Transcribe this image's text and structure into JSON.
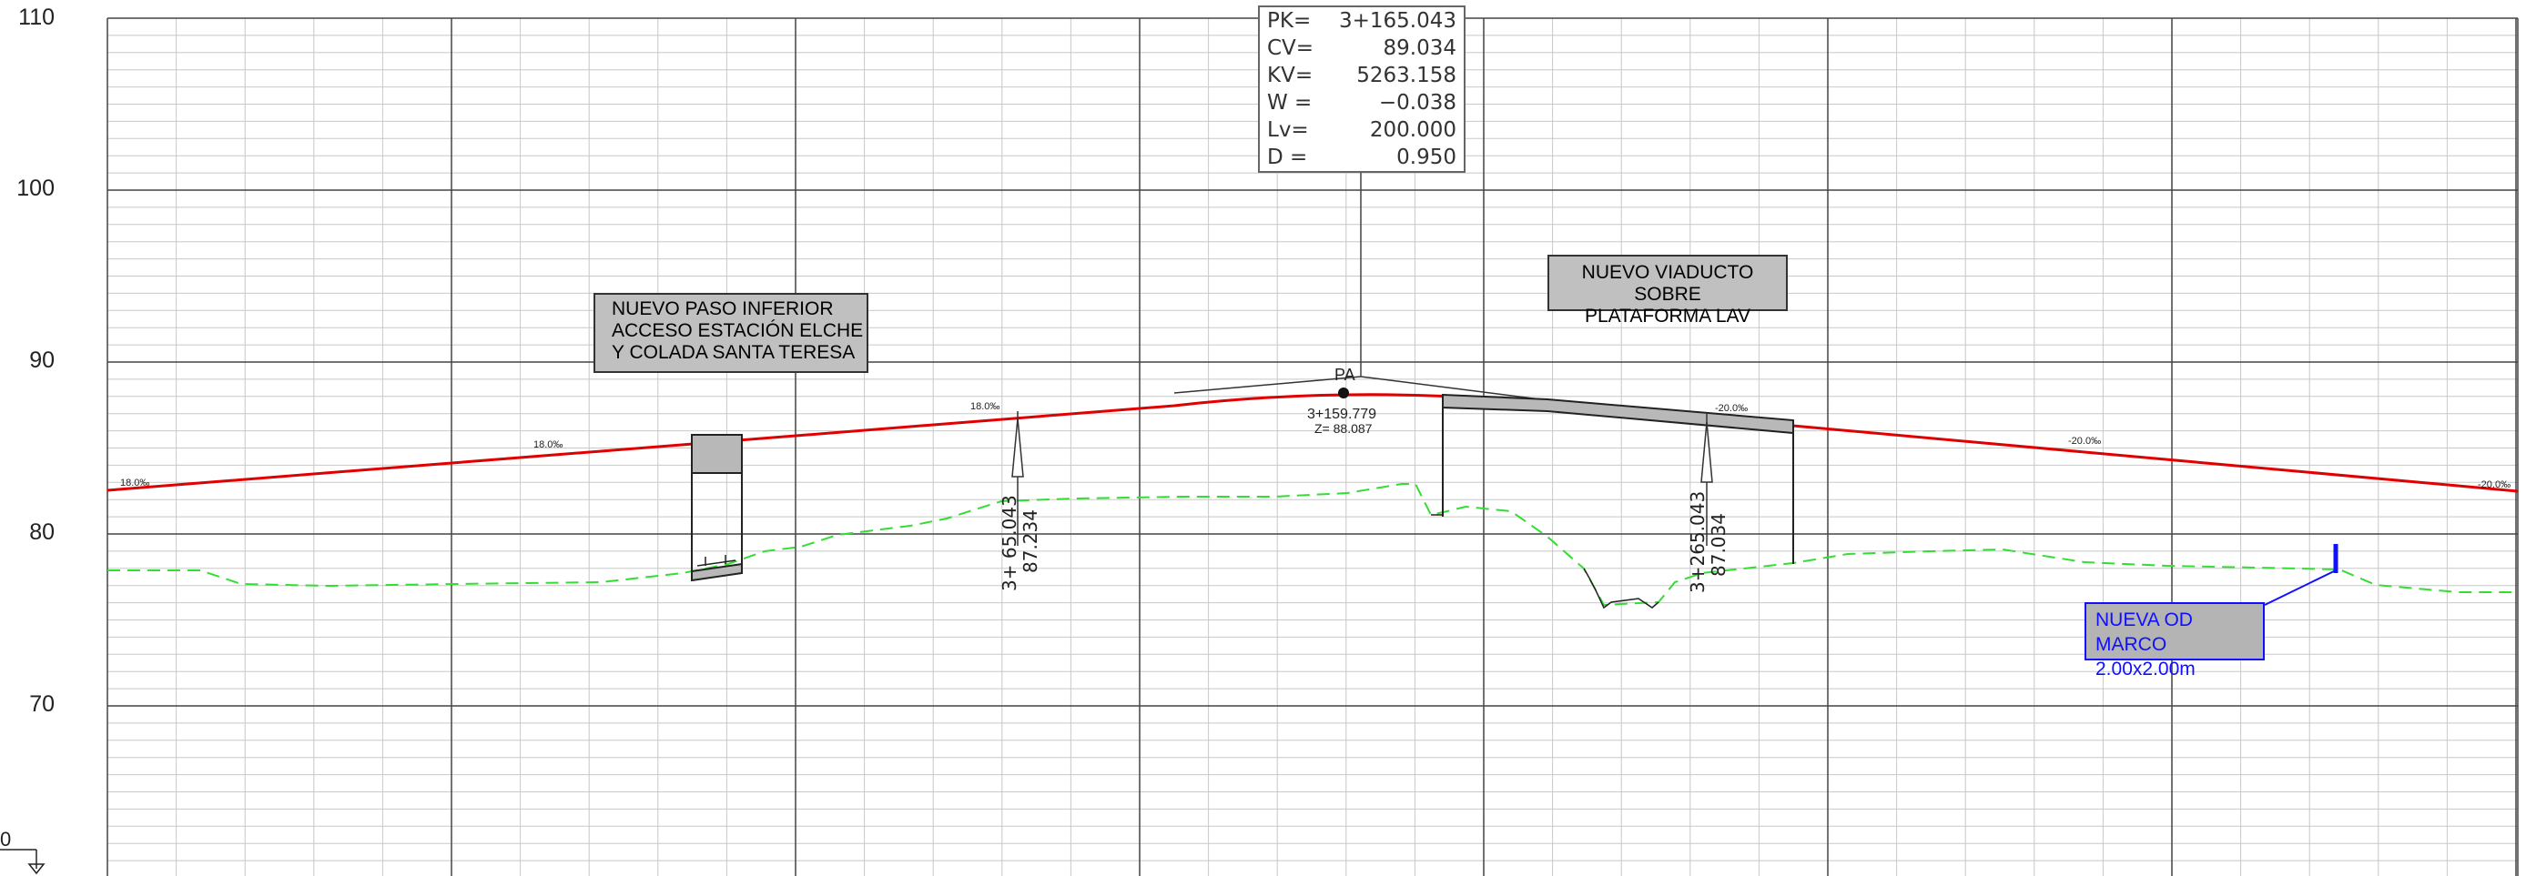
{
  "y_axis": {
    "ticks": [
      "110",
      "100",
      "90",
      "80",
      "70"
    ],
    "datum": "0"
  },
  "info_box": {
    "rows": [
      {
        "key": "PK=",
        "value": "3+165.043"
      },
      {
        "key": "CV=",
        "value": "89.034"
      },
      {
        "key": "KV=",
        "value": "5263.158"
      },
      {
        "key": "W =",
        "value": "−0.038"
      },
      {
        "key": "Lv=",
        "value": "200.000"
      },
      {
        "key": "D =",
        "value": "0.950"
      }
    ]
  },
  "annotations": {
    "paso_inferior": {
      "line1": "NUEVO PASO INFERIOR",
      "line2": "ACCESO ESTACIÓN ELCHE",
      "line3": "Y COLADA SANTA TERESA"
    },
    "viaducto": {
      "line1": "NUEVO VIADUCTO SOBRE",
      "line2": "PLATAFORMA LAV"
    },
    "nueva_od": {
      "line1": "NUEVA OD",
      "line2": "MARCO 2.00x2.00m"
    }
  },
  "vertex": {
    "label": "PA",
    "pk": "3+159.779",
    "z": "Z= 88.087"
  },
  "marker_left": {
    "pk": "3+ 65.043",
    "z": "87.234"
  },
  "marker_right": {
    "pk": "3+265.043",
    "z": "87.034"
  },
  "slopes": [
    "18.0‰",
    "18.0‰",
    "18.0‰",
    "-20.0‰",
    "-20.0‰",
    "-20.0‰"
  ],
  "colors": {
    "grade_line": "#e00000",
    "terrain_line": "#33dd33",
    "grid_major": "#444444",
    "grid_minor": "#c8c8c8",
    "structure_fill": "#b8b8b8",
    "od_color": "#1010ff"
  }
}
